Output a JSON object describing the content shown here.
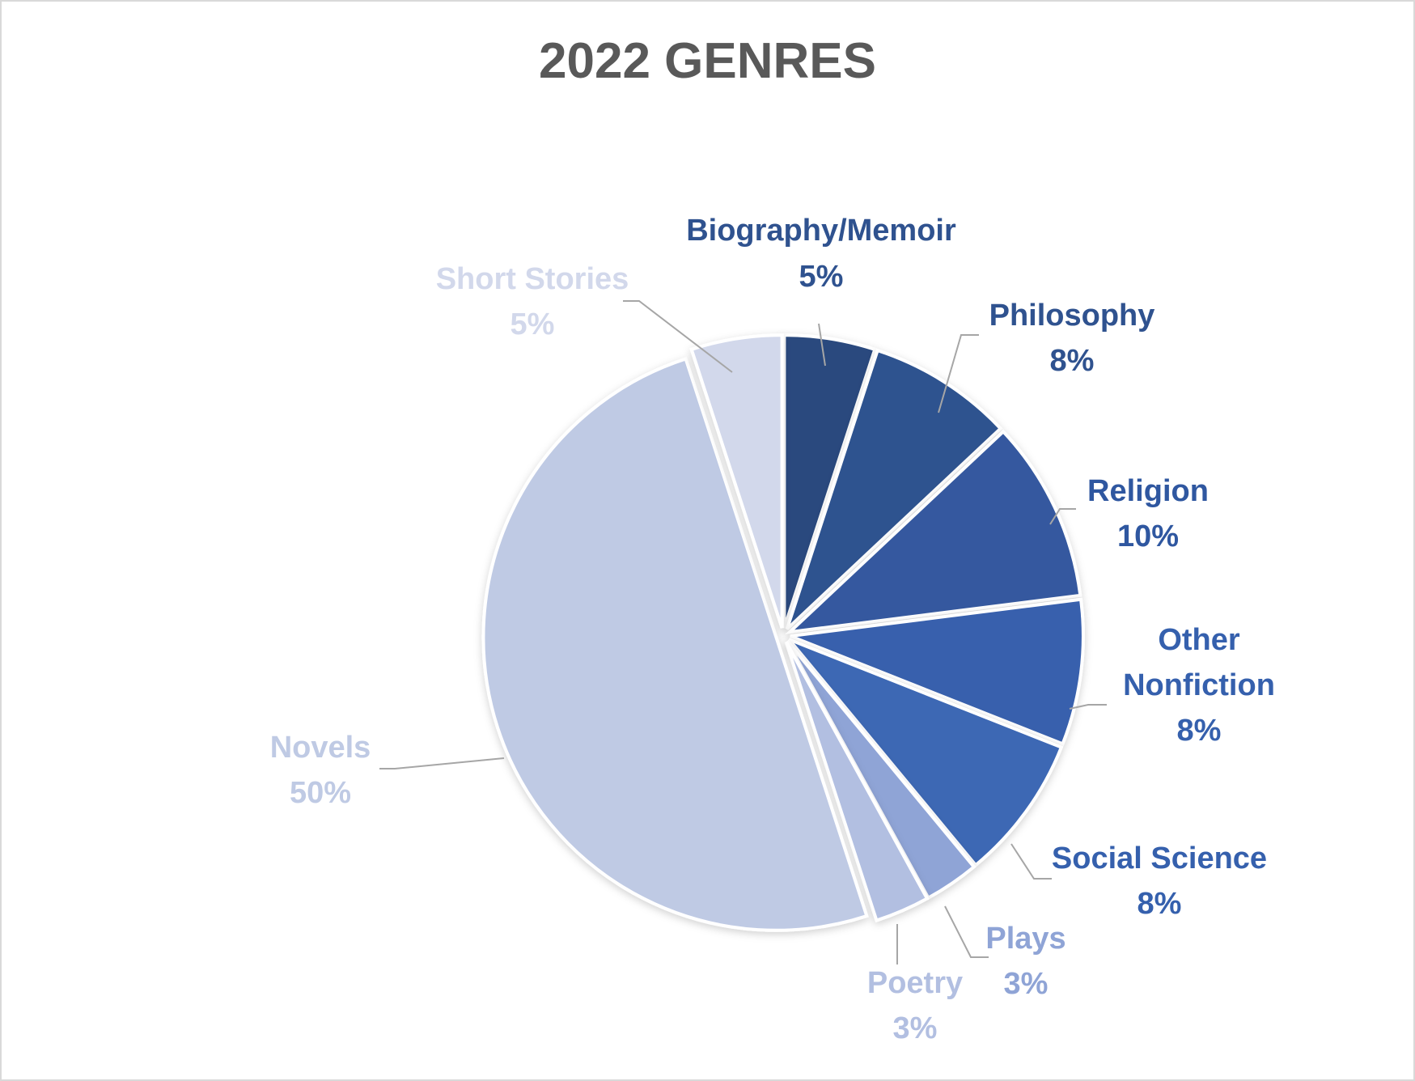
{
  "chart_data": {
    "type": "pie",
    "title": "2022 GENRES",
    "series": [
      {
        "name": "Biography/Memoir",
        "value": 5,
        "label": "5%",
        "color": "#2b4a7e"
      },
      {
        "name": "Philosophy",
        "value": 8,
        "label": "8%",
        "color": "#2f528f"
      },
      {
        "name": "Religion",
        "value": 10,
        "label": "10%",
        "color": "#34599f"
      },
      {
        "name": "Other Nonfiction",
        "value": 8,
        "label": "8%",
        "color": "#3860ad"
      },
      {
        "name": "Social Science",
        "value": 8,
        "label": "8%",
        "color": "#3d67b4"
      },
      {
        "name": "Plays",
        "value": 3,
        "label": "3%",
        "color": "#8fa4d6"
      },
      {
        "name": "Poetry",
        "value": 3,
        "label": "3%",
        "color": "#b2bfe1"
      },
      {
        "name": "Novels",
        "value": 50,
        "label": "50%",
        "color": "#bfcae4"
      },
      {
        "name": "Short Stories",
        "value": 5,
        "label": "5%",
        "color": "#d2d8eb"
      }
    ],
    "label_colors": {
      "Biography/Memoir": "#2f528f",
      "Philosophy": "#2f528f",
      "Religion": "#2f57a0",
      "Other Nonfiction": "#3560ad",
      "Social Science": "#3560ad",
      "Plays": "#8fa4d6",
      "Poetry": "#b2bfe1",
      "Novels": "#bfcae4",
      "Short Stories": "#d2d8eb"
    },
    "exploded": true,
    "legend": "none"
  }
}
